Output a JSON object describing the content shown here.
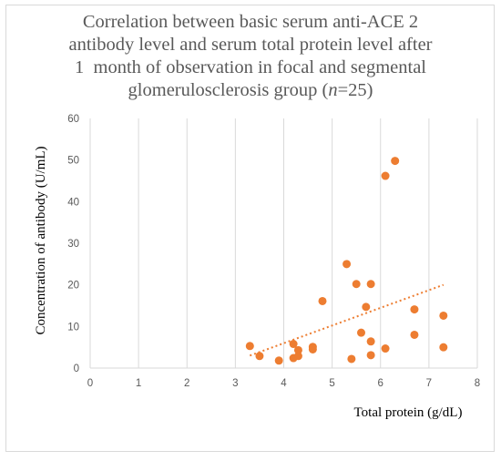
{
  "chart_data": {
    "type": "scatter",
    "title_lines": [
      "Correlation between basic serum anti-ACE 2",
      "antibody level and serum total protein level after",
      "1  month of observation in focal and segmental",
      "glomerulosclerosis group (",
      "n",
      "=25)"
    ],
    "xlabel": "Total protein (g/dL)",
    "ylabel": "Concentration of antibody (U/mL)",
    "xlim": [
      0,
      8
    ],
    "ylim": [
      0,
      60
    ],
    "xticks": [
      "0",
      "1",
      "2",
      "3",
      "4",
      "5",
      "6",
      "7",
      "8"
    ],
    "yticks": [
      "0",
      "10",
      "20",
      "30",
      "40",
      "50",
      "60"
    ],
    "grid": "vertical",
    "marker_color": "#ED7D31",
    "points": [
      {
        "x": 3.3,
        "y": 5.3
      },
      {
        "x": 3.5,
        "y": 2.9
      },
      {
        "x": 3.9,
        "y": 1.8
      },
      {
        "x": 4.2,
        "y": 5.8
      },
      {
        "x": 4.2,
        "y": 2.4
      },
      {
        "x": 4.3,
        "y": 4.3
      },
      {
        "x": 4.3,
        "y": 2.9
      },
      {
        "x": 4.6,
        "y": 5.1
      },
      {
        "x": 4.6,
        "y": 4.5
      },
      {
        "x": 4.8,
        "y": 16.1
      },
      {
        "x": 5.3,
        "y": 25.0
      },
      {
        "x": 5.4,
        "y": 2.2
      },
      {
        "x": 5.5,
        "y": 20.2
      },
      {
        "x": 5.6,
        "y": 8.5
      },
      {
        "x": 5.7,
        "y": 14.7
      },
      {
        "x": 5.8,
        "y": 20.2
      },
      {
        "x": 5.8,
        "y": 6.4
      },
      {
        "x": 5.8,
        "y": 3.1
      },
      {
        "x": 6.1,
        "y": 46.2
      },
      {
        "x": 6.1,
        "y": 4.7
      },
      {
        "x": 6.3,
        "y": 49.8
      },
      {
        "x": 6.7,
        "y": 14.1
      },
      {
        "x": 6.7,
        "y": 8.0
      },
      {
        "x": 7.3,
        "y": 12.6
      },
      {
        "x": 7.3,
        "y": 5.0
      }
    ],
    "trendline": {
      "style": "dotted",
      "color": "#ED7D31",
      "x": [
        3.3,
        7.3
      ],
      "y": [
        3.0,
        20.0
      ]
    }
  }
}
